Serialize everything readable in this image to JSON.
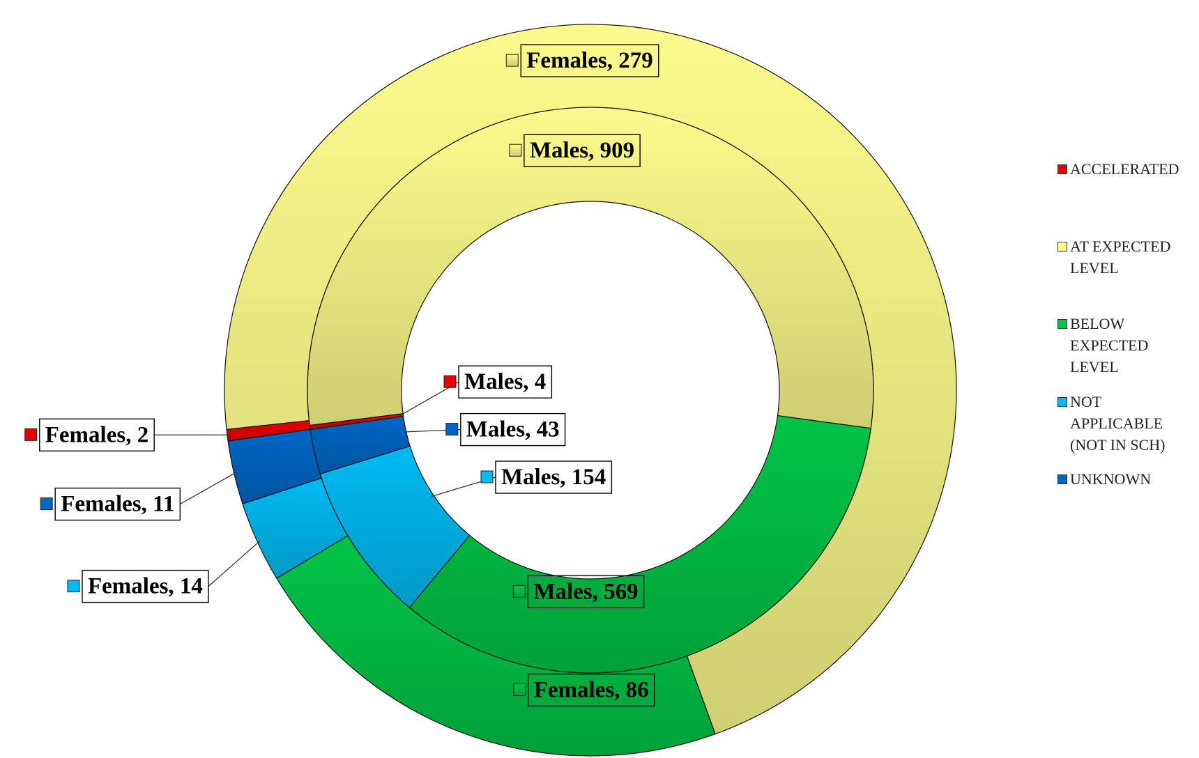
{
  "chart_data": {
    "type": "donut",
    "categories": [
      "ACCELERATED",
      "AT EXPECTED LEVEL",
      "BELOW EXPECTED LEVEL",
      "NOT APPLICABLE (NOT IN SCH)",
      "UNKNOWN"
    ],
    "colors": [
      "#e80000",
      "#fbfb8c",
      "#00c447",
      "#00baf2",
      "#0066c4"
    ],
    "series": [
      {
        "name": "Males",
        "values": [
          4,
          909,
          569,
          154,
          43
        ],
        "value_labels": [
          "Males, 4",
          "Males, 909",
          "Males, 569",
          "Males, 154",
          "Males, 43"
        ]
      },
      {
        "name": "Females",
        "values": [
          2,
          279,
          86,
          14,
          11
        ],
        "value_labels": [
          "Females, 2",
          "Females, 279",
          "Females, 86",
          "Females, 14",
          "Females, 11"
        ]
      }
    ],
    "legend": "right"
  }
}
